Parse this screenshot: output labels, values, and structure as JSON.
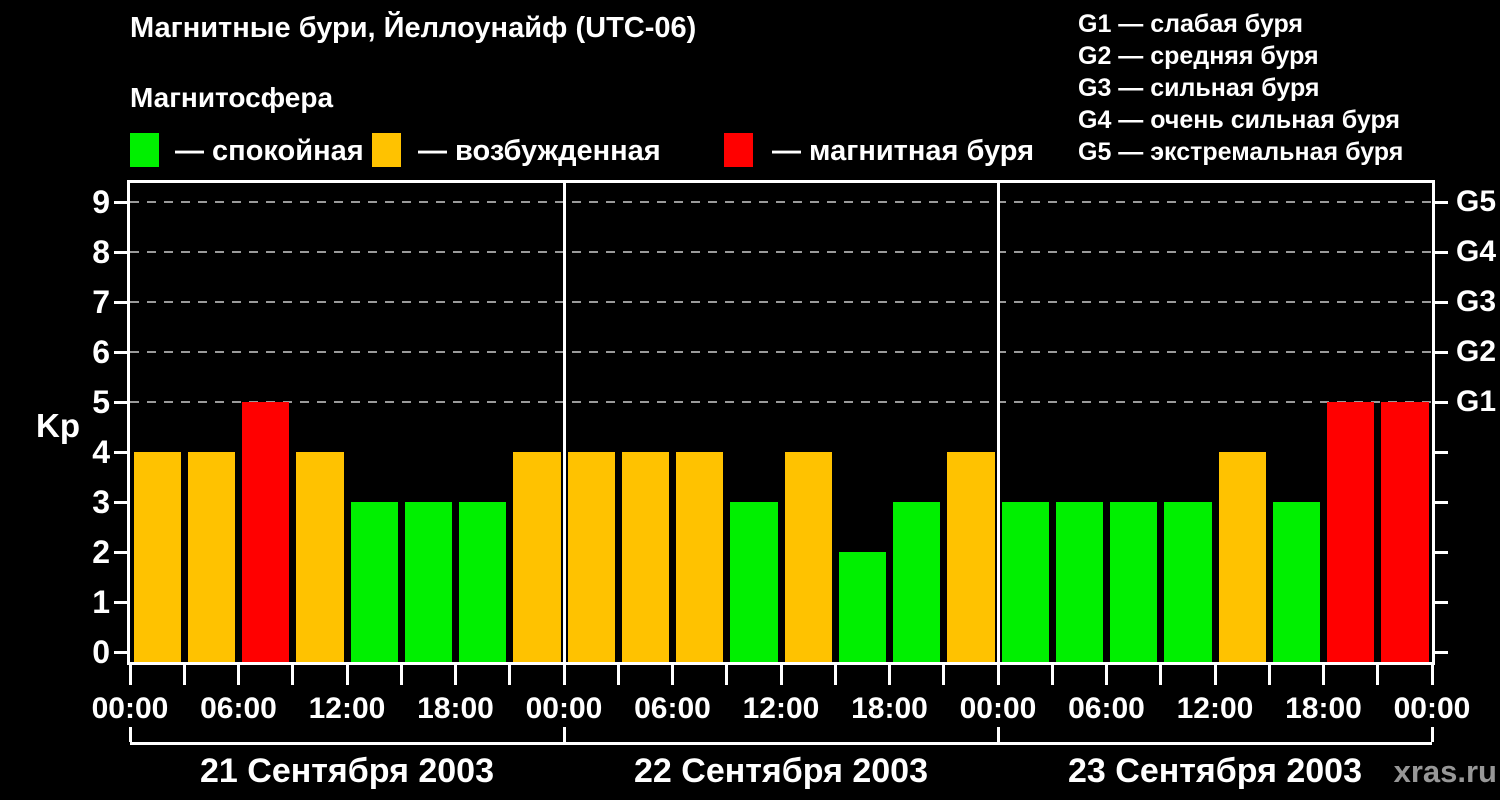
{
  "title": "Магнитные бури, Йеллоунайф (UTC-06)",
  "magnetosphere": {
    "title": "Магнитосфера",
    "items": [
      {
        "state": "quiet",
        "color": "#00f000",
        "label": "— спокойная"
      },
      {
        "state": "excited",
        "color": "#ffc200",
        "label": "— возбужденная"
      },
      {
        "state": "storm",
        "color": "#ff0000",
        "label": "— магнитная буря"
      }
    ]
  },
  "storm_scale": [
    "G1 — слабая буря",
    "G2 — средняя буря",
    "G3 — сильная буря",
    "G4 — очень сильная буря",
    "G5 — экстремальная буря"
  ],
  "watermark": "xras.ru",
  "chart_data": {
    "type": "bar",
    "title": "Магнитные бури, Йеллоунайф (UTC-06)",
    "ylabel": "Kp",
    "ylim": [
      0,
      9.4
    ],
    "y_ticks": [
      0,
      1,
      2,
      3,
      4,
      5,
      6,
      7,
      8,
      9
    ],
    "grid": "dashed horizontal lines at Kp 5-9",
    "grid_levels": [
      5,
      6,
      7,
      8,
      9
    ],
    "right_axis": [
      {
        "value": 5,
        "label": "G1"
      },
      {
        "value": 6,
        "label": "G2"
      },
      {
        "value": 7,
        "label": "G3"
      },
      {
        "value": 8,
        "label": "G4"
      },
      {
        "value": 9,
        "label": "G5"
      }
    ],
    "interval_hours": 3,
    "x_tick_labels_per_day": [
      "00:00",
      "06:00",
      "12:00",
      "18:00"
    ],
    "x_final_label": "00:00",
    "days": [
      {
        "date": "21 Сентября 2003",
        "kp": [
          4,
          4,
          5,
          4,
          3,
          3,
          3,
          4
        ]
      },
      {
        "date": "22 Сентября 2003",
        "kp": [
          4,
          4,
          4,
          3,
          4,
          2,
          3,
          4
        ]
      },
      {
        "date": "23 Сентября 2003",
        "kp": [
          3,
          3,
          3,
          3,
          4,
          3,
          5,
          5
        ]
      }
    ],
    "color_rules": {
      "quiet_max": 3,
      "excited_max": 4
    },
    "colors": {
      "quiet": "#00f000",
      "excited": "#ffc200",
      "storm": "#ff0000"
    }
  }
}
